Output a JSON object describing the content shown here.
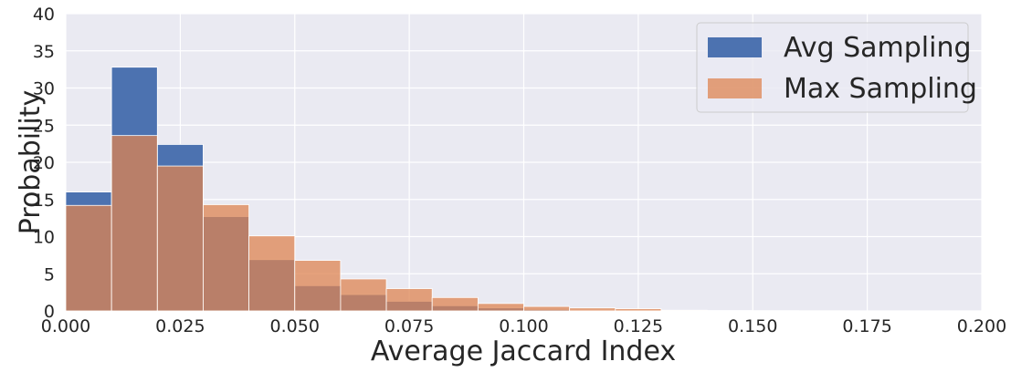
{
  "chart_data": {
    "type": "bar",
    "title": "",
    "xlabel": "Average Jaccard Index",
    "ylabel": "Probability",
    "xlim": [
      0,
      0.2
    ],
    "ylim": [
      0,
      40
    ],
    "grid": true,
    "legend_position": "top-right",
    "xticks": [
      "0.000",
      "0.025",
      "0.050",
      "0.075",
      "0.100",
      "0.125",
      "0.150",
      "0.175",
      "0.200"
    ],
    "yticks": [
      "0",
      "5",
      "10",
      "15",
      "20",
      "25",
      "30",
      "35",
      "40"
    ],
    "bin_edges": [
      0.0,
      0.01,
      0.02,
      0.03,
      0.04,
      0.05,
      0.06,
      0.07,
      0.08,
      0.09,
      0.1,
      0.11,
      0.12,
      0.13,
      0.14,
      0.15,
      0.16,
      0.17,
      0.18,
      0.19,
      0.2
    ],
    "series": [
      {
        "name": "Avg Sampling",
        "color": "#4c72b0",
        "values": [
          16.0,
          32.8,
          22.4,
          12.7,
          6.9,
          3.4,
          2.2,
          1.3,
          0.7,
          0.4,
          0.2,
          0.1,
          0.1,
          0.05,
          0.02,
          0.02,
          0.01,
          0.01,
          0.01,
          0.0
        ]
      },
      {
        "name": "Max Sampling",
        "color": "#dd8452",
        "values": [
          14.2,
          23.6,
          19.5,
          14.3,
          10.1,
          6.8,
          4.3,
          3.0,
          1.8,
          1.0,
          0.6,
          0.4,
          0.3,
          0.1,
          0.05,
          0.03,
          0.02,
          0.01,
          0.01,
          0.0
        ]
      }
    ]
  }
}
